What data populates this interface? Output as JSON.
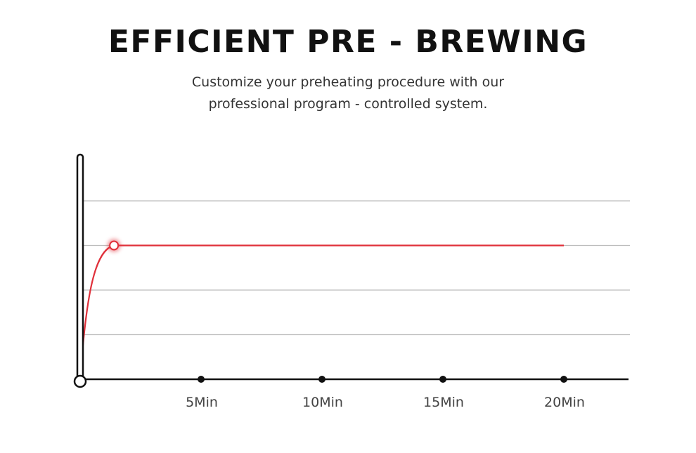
{
  "header": {
    "title": "EFFICIENT PRE - BREWING",
    "subtitle_line1": "Customize your preheating procedure with our",
    "subtitle_line2": "professional program - controlled system."
  },
  "colors": {
    "curve": "#e0303a",
    "axis": "#111111",
    "grid": "#bdbdbd",
    "text": "#333333"
  },
  "chart_data": {
    "type": "line",
    "title": "",
    "xlabel": "",
    "ylabel": "",
    "x_ticks": [
      {
        "value": 5,
        "label": "5Min"
      },
      {
        "value": 10,
        "label": "10Min"
      },
      {
        "value": 15,
        "label": "15Min"
      },
      {
        "value": 20,
        "label": "20Min"
      }
    ],
    "xlim": [
      0,
      22
    ],
    "ylim": [
      0,
      4
    ],
    "grid": true,
    "y_gridlines": [
      1,
      2,
      3,
      4
    ],
    "series": [
      {
        "values": [
          [
            0,
            0
          ],
          [
            0.3,
            1.2
          ],
          [
            0.7,
            2.3
          ],
          [
            1.2,
            2.85
          ],
          [
            1.4,
            3
          ],
          [
            5,
            3
          ],
          [
            10,
            3
          ],
          [
            15,
            3
          ],
          [
            20,
            3
          ]
        ],
        "marker_at": [
          1.4,
          3
        ]
      }
    ]
  }
}
